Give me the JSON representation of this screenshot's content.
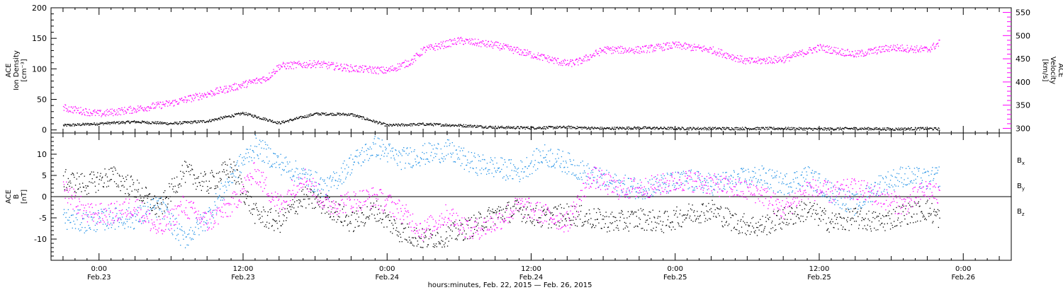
{
  "chart_data": [
    {
      "type": "scatter",
      "panel": "plasma",
      "ylabel_lines": [
        "ACE",
        "Ion Density",
        "[cm⁻³]"
      ],
      "ylabel_right_lines": [
        "ACE",
        "Velocity",
        "[km/s]"
      ],
      "ylim": [
        -5,
        200
      ],
      "ylim_right": [
        290,
        560
      ],
      "yticks": [
        "0",
        "50",
        "100",
        "150",
        "200"
      ],
      "yticks_right": [
        "300",
        "350",
        "400",
        "450",
        "500",
        "550"
      ],
      "series": [
        {
          "name": "Ion Density",
          "color": "#000000",
          "axis": "left",
          "hours": [
            -3,
            0,
            3,
            6,
            9,
            12,
            15,
            18,
            21,
            24,
            27,
            30,
            33,
            36,
            39,
            42,
            45,
            48,
            51,
            54,
            57,
            60,
            63,
            66,
            69,
            70
          ],
          "values": [
            8,
            11,
            14,
            11,
            15,
            28,
            12,
            27,
            26,
            8,
            10,
            8,
            5,
            4,
            5,
            3,
            4,
            3,
            3,
            3,
            3,
            2,
            3,
            2,
            3,
            2
          ]
        },
        {
          "name": "Velocity",
          "color": "#ff00ff",
          "axis": "right",
          "hours": [
            -3,
            0,
            3,
            6,
            9,
            12,
            14,
            15,
            18,
            21,
            24,
            26,
            27,
            30,
            33,
            36,
            39,
            40,
            42,
            45,
            48,
            51,
            54,
            57,
            60,
            63,
            66,
            69,
            70
          ],
          "values": [
            345,
            332,
            342,
            355,
            375,
            395,
            410,
            435,
            440,
            430,
            425,
            445,
            470,
            490,
            480,
            460,
            440,
            445,
            470,
            470,
            480,
            470,
            445,
            450,
            475,
            460,
            475,
            470,
            485
          ]
        }
      ]
    },
    {
      "type": "scatter",
      "panel": "magnetic field",
      "ylabel_lines": [
        "ACE",
        "B",
        "[nT]"
      ],
      "ylim": [
        -15,
        15
      ],
      "yticks": [
        "10",
        "5",
        "0",
        "-5",
        "-10"
      ],
      "zero_line": true,
      "legend_placement": "right",
      "series": [
        {
          "name": "B",
          "subscript": "x",
          "color": "#000000",
          "hours": [
            -3,
            -1,
            1,
            3,
            5,
            7,
            9,
            11,
            13,
            15,
            17,
            19,
            21,
            23,
            25,
            27,
            29,
            31,
            33,
            35,
            37,
            39,
            41,
            43,
            45,
            47,
            49,
            51,
            53,
            55,
            57,
            59,
            61,
            63,
            65,
            67,
            69,
            70
          ],
          "values": [
            4,
            3,
            5,
            2,
            -3,
            6,
            3,
            7,
            -4,
            -6,
            0,
            -2,
            -6,
            -3,
            -8,
            -10,
            -9,
            -7,
            -4,
            -3,
            -5,
            -4,
            -5,
            -6,
            -5,
            -6,
            -4,
            -3,
            -6,
            -7,
            -5,
            -3,
            -6,
            -5,
            -6,
            -4,
            -3,
            -5
          ]
        },
        {
          "name": "B",
          "subscript": "y",
          "color": "#1e90e6",
          "hours": [
            -3,
            -1,
            1,
            3,
            5,
            7,
            9,
            11,
            13,
            15,
            17,
            19,
            21,
            23,
            25,
            27,
            29,
            31,
            33,
            35,
            37,
            39,
            41,
            43,
            45,
            47,
            49,
            51,
            53,
            55,
            57,
            59,
            61,
            63,
            65,
            67,
            69,
            70
          ],
          "values": [
            -5,
            -6,
            -5,
            -5,
            -2,
            -10,
            -5,
            5,
            12,
            8,
            5,
            2,
            8,
            12,
            9,
            10,
            11,
            8,
            7,
            6,
            10,
            8,
            5,
            3,
            2,
            3,
            4,
            3,
            4,
            5,
            3,
            5,
            1,
            -2,
            3,
            5,
            4,
            5
          ]
        },
        {
          "name": "B",
          "subscript": "z",
          "color": "#ff00ff",
          "hours": [
            -3,
            -1,
            1,
            3,
            5,
            7,
            9,
            11,
            13,
            15,
            17,
            19,
            21,
            23,
            25,
            27,
            29,
            31,
            33,
            35,
            37,
            39,
            41,
            43,
            45,
            47,
            49,
            51,
            53,
            55,
            57,
            59,
            61,
            63,
            65,
            67,
            69,
            70
          ],
          "values": [
            2,
            -4,
            -4,
            -2,
            -8,
            -2,
            -6,
            -2,
            6,
            -2,
            5,
            -2,
            -1,
            0,
            -3,
            -8,
            -4,
            -8,
            -6,
            -2,
            -4,
            -6,
            5,
            2,
            2,
            3,
            4,
            3,
            2,
            1,
            -3,
            2,
            1,
            2,
            0,
            -2,
            2,
            0
          ]
        }
      ]
    }
  ],
  "x_axis": {
    "xlim_hours": [
      -4,
      76
    ],
    "tick_hours": [
      0,
      12,
      24,
      36,
      48,
      60,
      72
    ],
    "tick_labels_time": [
      "0:00",
      "12:00",
      "0:00",
      "12:00",
      "0:00",
      "12:00",
      "0:00"
    ],
    "tick_labels_date": [
      "Feb.23",
      "Feb.23",
      "Feb.24",
      "Feb.24",
      "Feb.25",
      "Feb.25",
      "Feb.26"
    ],
    "xlabel": "hours:minutes, Feb. 22, 2015 — Feb. 26, 2015"
  }
}
